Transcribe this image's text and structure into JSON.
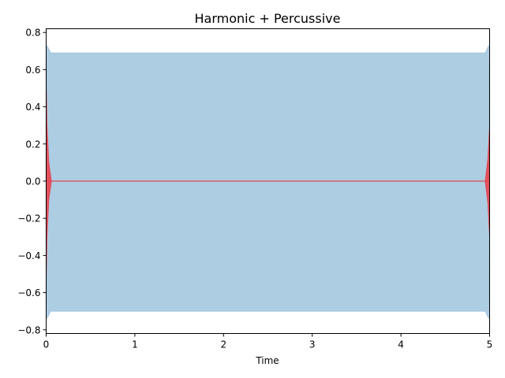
{
  "chart_data": {
    "type": "area",
    "title": "Harmonic + Percussive",
    "xlabel": "Time",
    "ylabel": "",
    "xlim": [
      0,
      5
    ],
    "ylim": [
      -0.82,
      0.82
    ],
    "xticks": [
      0,
      1,
      2,
      3,
      4,
      5
    ],
    "xtick_labels": [
      "0",
      "1",
      "2",
      "3",
      "4",
      "5"
    ],
    "yticks": [
      0.8,
      0.6,
      0.4,
      0.2,
      0.0,
      -0.2,
      -0.4,
      -0.6,
      -0.8
    ],
    "ytick_labels": [
      "0.8",
      "0.6",
      "0.4",
      "0.2",
      "0.0",
      "−0.2",
      "−0.4",
      "−0.6",
      "−0.8"
    ],
    "grid": false,
    "legend": "none",
    "series": [
      {
        "color": "#9fc4de",
        "envelope": [
          {
            "x": 0.0,
            "upper": 0.0,
            "lower": 0.0
          },
          {
            "x": 0.01,
            "upper": 0.73,
            "lower": -0.74
          },
          {
            "x": 0.05,
            "upper": 0.69,
            "lower": -0.7
          },
          {
            "x": 4.95,
            "upper": 0.69,
            "lower": -0.7
          },
          {
            "x": 4.99,
            "upper": 0.73,
            "lower": -0.74
          },
          {
            "x": 5.0,
            "upper": 0.0,
            "lower": 0.0
          }
        ]
      },
      {
        "color": "#e8454f",
        "envelope": [
          {
            "x": 0.0,
            "upper": 0.55,
            "lower": -0.55
          },
          {
            "x": 0.01,
            "upper": 0.3,
            "lower": -0.3
          },
          {
            "x": 0.03,
            "upper": 0.1,
            "lower": -0.1
          },
          {
            "x": 0.06,
            "upper": 0.0,
            "lower": 0.0
          },
          {
            "x": 4.95,
            "upper": 0.0,
            "lower": 0.0
          },
          {
            "x": 4.98,
            "upper": 0.12,
            "lower": -0.12
          },
          {
            "x": 5.0,
            "upper": 0.3,
            "lower": -0.3
          }
        ]
      }
    ]
  }
}
